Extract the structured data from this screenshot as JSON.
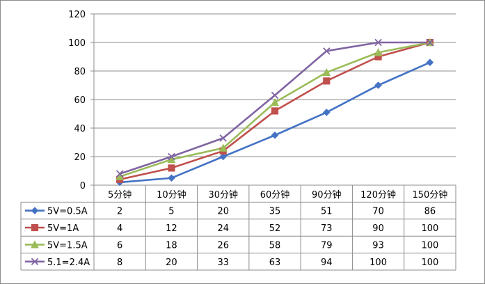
{
  "chart_data": {
    "type": "line",
    "categories": [
      "5分钟",
      "10分钟",
      "30分钟",
      "60分钟",
      "90分钟",
      "120分钟",
      "150分钟"
    ],
    "ylim": [
      0,
      120
    ],
    "yticks": [
      0,
      20,
      40,
      60,
      80,
      100,
      120
    ],
    "grid": true,
    "legend": "data-table-left",
    "series": [
      {
        "name": "5V=0.5A",
        "color": "#4472C4",
        "marker": "diamond",
        "values": [
          2,
          5,
          20,
          35,
          51,
          70,
          86
        ]
      },
      {
        "name": "5V=1A",
        "color": "#C0504D",
        "marker": "square",
        "values": [
          4,
          12,
          24,
          52,
          73,
          90,
          100
        ]
      },
      {
        "name": "5V=1.5A",
        "color": "#9BBB59",
        "marker": "triangle",
        "values": [
          6,
          18,
          26,
          58,
          79,
          93,
          100
        ]
      },
      {
        "name": "5.1=2.4A",
        "color": "#8064A2",
        "marker": "x",
        "values": [
          8,
          20,
          33,
          63,
          94,
          100,
          100
        ]
      }
    ]
  }
}
